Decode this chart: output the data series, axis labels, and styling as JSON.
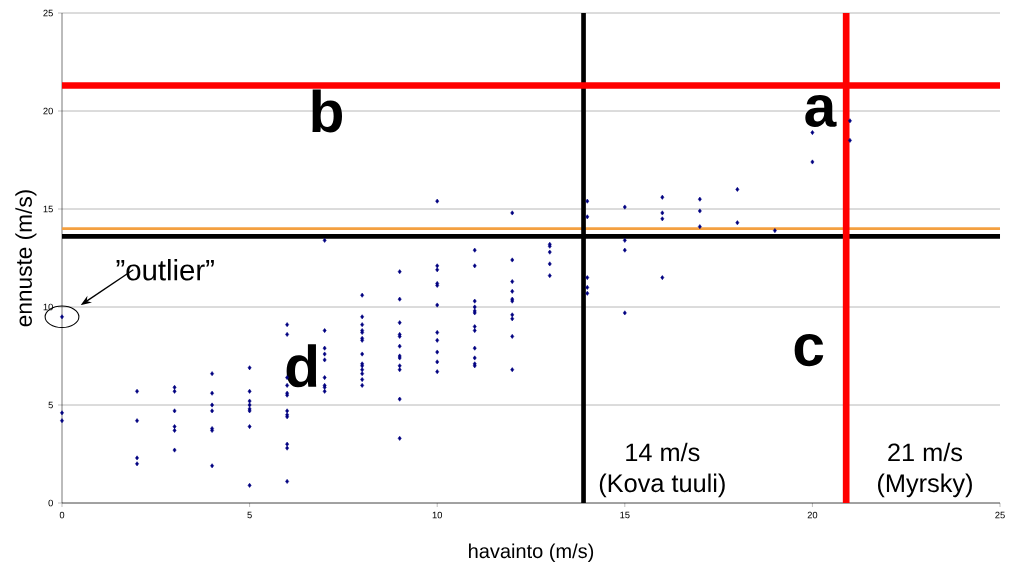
{
  "chart_data": {
    "type": "scatter",
    "xlabel": "havainto (m/s)",
    "ylabel": "ennuste (m/s)",
    "xlim": [
      0,
      25
    ],
    "ylim": [
      0,
      25
    ],
    "xticks": [
      0,
      5,
      10,
      15,
      20,
      25
    ],
    "yticks": [
      0,
      5,
      10,
      15,
      20,
      25
    ],
    "grid": "y",
    "marker": "diamond",
    "series": [
      {
        "color": "#000080",
        "x": [
          0,
          0,
          0,
          2,
          2,
          2,
          2,
          3,
          3,
          3,
          3,
          3,
          3,
          4,
          4,
          4,
          4,
          4,
          4,
          4,
          5,
          5,
          5,
          5,
          5,
          5,
          5,
          5,
          6,
          6,
          6,
          6,
          6,
          6,
          6,
          6,
          6,
          6,
          6,
          6,
          7,
          7,
          7,
          7,
          7,
          7,
          7,
          7,
          7,
          8,
          8,
          8,
          8,
          8,
          8,
          8,
          8,
          8,
          8,
          8,
          8,
          8,
          8,
          9,
          9,
          9,
          9,
          9,
          9,
          9,
          9,
          9,
          9,
          9,
          9,
          10,
          10,
          10,
          10,
          10,
          10,
          10,
          10,
          10,
          10,
          10,
          11,
          11,
          11,
          11,
          11,
          11,
          11,
          11,
          11,
          11,
          11,
          11,
          12,
          12,
          12,
          12,
          12,
          12,
          12,
          12,
          12,
          12,
          13,
          13,
          13,
          13,
          13,
          14,
          14,
          14,
          14,
          14,
          15,
          15,
          15,
          15,
          16,
          16,
          16,
          16,
          17,
          17,
          17,
          18,
          18,
          19,
          20,
          20,
          21,
          21
        ],
        "values": [
          9.5,
          4.6,
          4.2,
          5.7,
          4.2,
          2.3,
          2.0,
          5.9,
          5.7,
          4.7,
          3.9,
          3.7,
          2.7,
          6.6,
          5.6,
          5.0,
          4.7,
          3.8,
          3.7,
          1.9,
          6.9,
          5.7,
          5.2,
          5.0,
          4.8,
          4.7,
          3.9,
          0.9,
          9.1,
          8.6,
          6.4,
          6.0,
          5.6,
          5.5,
          4.7,
          4.5,
          4.4,
          3.0,
          2.8,
          1.1,
          13.4,
          8.8,
          7.9,
          7.6,
          7.3,
          6.4,
          6.0,
          5.9,
          5.7,
          10.6,
          9.5,
          9.1,
          8.8,
          8.7,
          8.4,
          8.3,
          7.6,
          7.1,
          7.0,
          6.8,
          6.6,
          6.3,
          6.0,
          11.8,
          10.4,
          9.2,
          8.6,
          8.5,
          8.0,
          7.5,
          7.4,
          7.0,
          6.8,
          5.3,
          3.3,
          15.4,
          12.1,
          11.9,
          11.2,
          11.1,
          10.1,
          8.7,
          8.3,
          7.7,
          7.2,
          6.7,
          12.9,
          12.1,
          10.3,
          10.0,
          9.8,
          9.7,
          9.0,
          8.8,
          7.9,
          7.4,
          7.1,
          7.0,
          14.8,
          12.4,
          11.3,
          10.8,
          10.4,
          10.3,
          9.6,
          9.4,
          8.5,
          6.8,
          13.2,
          13.1,
          12.8,
          12.2,
          11.6,
          15.4,
          14.6,
          11.5,
          11.0,
          10.7,
          15.1,
          13.4,
          12.9,
          9.7,
          15.6,
          14.8,
          14.5,
          11.5,
          15.5,
          14.9,
          14.1,
          16.0,
          14.3,
          13.9,
          18.9,
          17.4,
          19.5,
          18.5
        ]
      }
    ],
    "ref_lines": [
      {
        "axis": "y",
        "value": 14,
        "color": "#f4a040"
      },
      {
        "axis": "y",
        "value": 13.6,
        "color": "#000000"
      },
      {
        "axis": "x",
        "value": 13.9,
        "color": "#000000"
      },
      {
        "axis": "y",
        "value": 21.3,
        "color": "#ff0000"
      },
      {
        "axis": "x",
        "value": 20.9,
        "color": "#ff0000"
      }
    ],
    "annotations": [
      "a",
      "b",
      "c",
      "d",
      {
        "text": "”outlier”",
        "x": 0,
        "y": 9.5
      },
      "14 m/s",
      "(Kova tuuli)",
      "21 m/s",
      "(Myrsky)"
    ]
  }
}
